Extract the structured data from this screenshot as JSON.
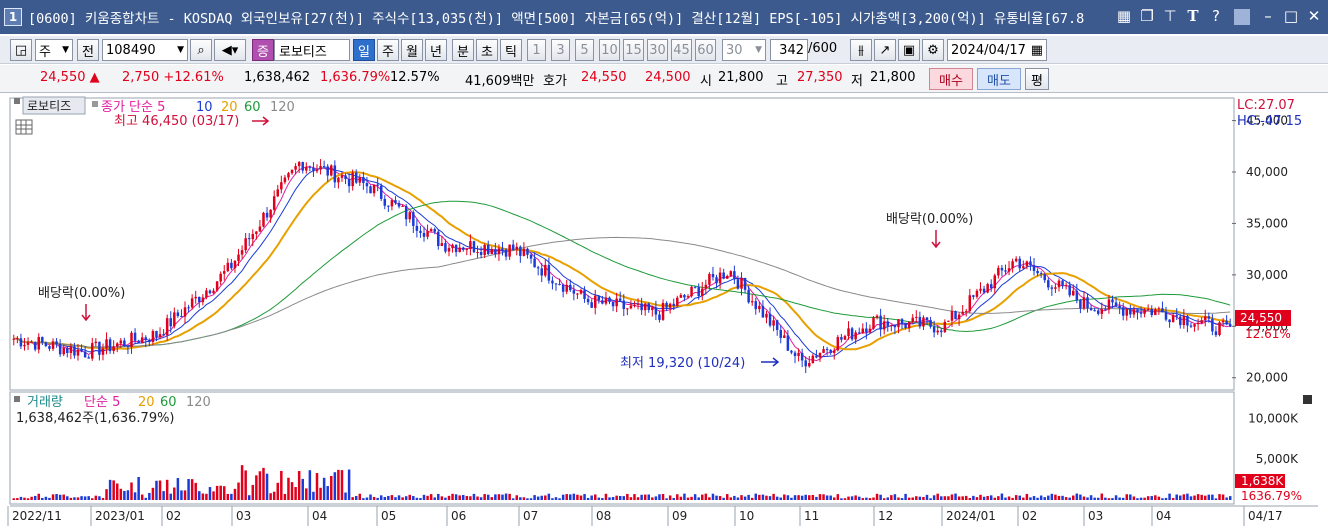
{
  "window": {
    "number": "1",
    "title": "[0600] 키움종합차트 - KOSDAQ 외국인보유[27(천)] 주식수[13,035(천)] 액면[500] 자본금[65(억)] 결산[12월] EPS[-105] 시가총액[3,200(억)] 유통비율[67.8"
  },
  "title_icons": [
    "grid-icon",
    "restore-icon",
    "pin-icon",
    "font-icon",
    "help-icon",
    "minimize-icon",
    "maximize-icon",
    "close-icon"
  ],
  "toolbar": {
    "type_select": "주",
    "all_label": "전",
    "code": "108490",
    "stock_button": "증",
    "stock_name": "로보티즈",
    "periods": [
      "일",
      "주",
      "월",
      "년",
      "분",
      "초",
      "틱"
    ],
    "active_period": "일",
    "minutes": [
      "1",
      "3",
      "5",
      "10",
      "15",
      "30",
      "45",
      "60"
    ],
    "minute_select": "30",
    "count": "342",
    "count_total": "/600",
    "date": "2024/04/17"
  },
  "quote": {
    "price": "24,550",
    "arrow": "▲",
    "change": "2,750",
    "change_pct": "+12.61%",
    "volume": "1,638,462",
    "volume_ratio": "1,636.79%",
    "turnover": "12.57%",
    "amount": "41,609백만",
    "ask_label": "호가",
    "ask": "24,550",
    "bid": "24,500",
    "open_label": "시",
    "open": "21,800",
    "high_label": "고",
    "high": "27,350",
    "low_label": "저",
    "low": "21,800",
    "buy_label": "매수",
    "sell_label": "매도",
    "eval_label": "평"
  },
  "chart_data": {
    "type": "candlestick",
    "stock_label": "로보티즈",
    "legend_price": "종가 단순",
    "ma_periods": [
      "5",
      "10",
      "20",
      "60",
      "120"
    ],
    "ma_colors": [
      "#e020a0",
      "#1a3bd8",
      "#e8a000",
      "#1e9a3a",
      "#8a8a8a"
    ],
    "high_note": "최고 46,450 (03/17)",
    "low_note": "최저 19,320 (10/24)",
    "dividend_note": "배당락(0.00%)",
    "lc": "LC:27.07",
    "hc": "HC:-47.15",
    "yticks": [
      "20,000",
      "25,000",
      "30,000",
      "35,000",
      "40,000",
      "45,000"
    ],
    "ylim": [
      19000,
      47000
    ],
    "current_price_tag": "24,550",
    "current_pct_tag": "12.61%",
    "xticks": [
      "2022/11",
      "2023/01",
      "02",
      "03",
      "04",
      "05",
      "06",
      "07",
      "08",
      "09",
      "10",
      "11",
      "12",
      "2024/01",
      "02",
      "03",
      "04",
      "04/17"
    ],
    "x_month_points": [
      [
        "2022/11",
        23800
      ],
      [
        "2022/12",
        22500
      ],
      [
        "2023/01",
        24200
      ],
      [
        "2023/02",
        30500
      ],
      [
        "2023/03",
        41000
      ],
      [
        "2023/04",
        38500
      ],
      [
        "2023/05",
        33000
      ],
      [
        "2023/06",
        32500
      ],
      [
        "2023/07",
        27500
      ],
      [
        "2023/08",
        26200
      ],
      [
        "2023/09",
        30500
      ],
      [
        "2023/10",
        21500
      ],
      [
        "2023/11",
        25500
      ],
      [
        "2023/12",
        25000
      ],
      [
        "2024/01",
        31500
      ],
      [
        "2024/02",
        27000
      ],
      [
        "2024/03",
        26500
      ],
      [
        "2024/04",
        24550
      ]
    ],
    "volume": {
      "label": "거래량",
      "ma_label": "단순",
      "ma_periods": [
        "5",
        "20",
        "60",
        "120"
      ],
      "current": "1,638,462주(1,636.79%)",
      "yticks": [
        "5,000K",
        "10,000K"
      ],
      "ylim": [
        0,
        13000
      ],
      "current_tag": "1,638K",
      "current_pct_tag": "1636.79%"
    }
  }
}
